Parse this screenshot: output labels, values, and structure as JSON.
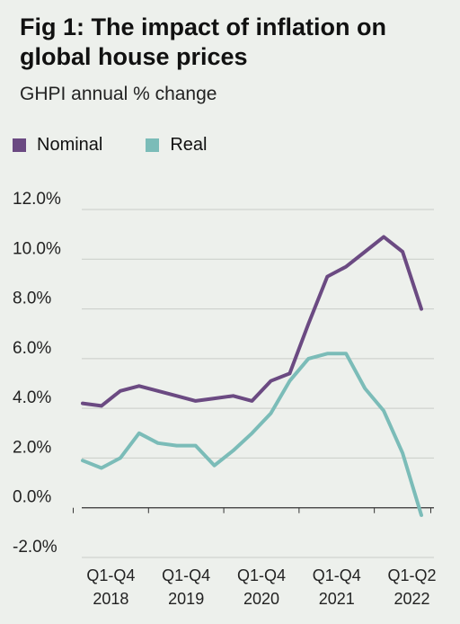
{
  "title": "Fig 1: The impact of inflation on global house prices",
  "subtitle": "GHPI annual % change",
  "colors": {
    "nominal": "#6b4a82",
    "real": "#7bbcb8",
    "grid": "#c9cdc8",
    "zero": "#333333"
  },
  "chart_data": {
    "type": "line",
    "title": "Fig 1: The impact of inflation on global house prices",
    "subtitle": "GHPI annual % change",
    "ylim": [
      -2,
      12
    ],
    "yticks": [
      12,
      10,
      8,
      6,
      4,
      2,
      0,
      -2
    ],
    "ytick_labels": [
      "12.0%",
      "10.0%",
      "8.0%",
      "6.0%",
      "4.0%",
      "2.0%",
      "0.0%",
      "-2.0%"
    ],
    "x_labels": [
      {
        "line1": "Q1-Q4",
        "line2": "2018",
        "index": 1.5
      },
      {
        "line1": "Q1-Q4",
        "line2": "2019",
        "index": 5.5
      },
      {
        "line1": "Q1-Q4",
        "line2": "2020",
        "index": 9.5
      },
      {
        "line1": "Q1-Q4",
        "line2": "2021",
        "index": 13.5
      },
      {
        "line1": "Q1-Q2",
        "line2": "2022",
        "index": 17.5
      }
    ],
    "x_tick_indices": [
      -0.5,
      3.5,
      7.5,
      11.5,
      15.5,
      18.5
    ],
    "legend": {
      "placement": "top-left",
      "entries": [
        "Nominal",
        "Real"
      ]
    },
    "grid": true,
    "series": [
      {
        "name": "Nominal",
        "color": "#6b4a82",
        "values": [
          4.2,
          4.1,
          4.7,
          4.9,
          4.7,
          4.5,
          4.3,
          4.4,
          4.5,
          4.3,
          5.1,
          5.4,
          7.4,
          9.3,
          9.7,
          10.3,
          10.9,
          10.3,
          8.0
        ]
      },
      {
        "name": "Real",
        "color": "#7bbcb8",
        "values": [
          1.9,
          1.6,
          2.0,
          3.0,
          2.6,
          2.5,
          2.5,
          1.7,
          2.3,
          3.0,
          3.8,
          5.1,
          6.0,
          6.2,
          6.2,
          4.8,
          3.9,
          2.2,
          -0.3
        ]
      }
    ]
  }
}
